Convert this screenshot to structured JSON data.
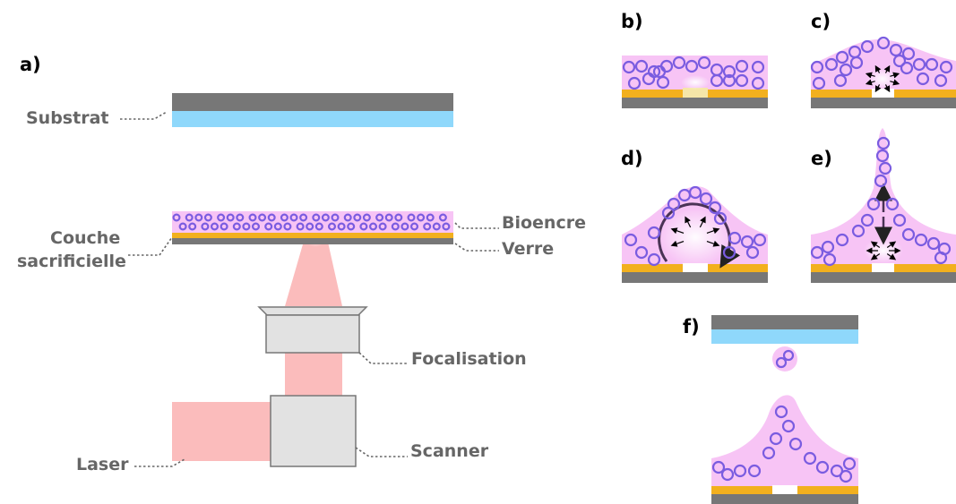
{
  "panels": {
    "a": "a)",
    "b": "b)",
    "c": "c)",
    "d": "d)",
    "e": "e)",
    "f": "f)"
  },
  "labels": {
    "substrat": "Substrat",
    "bioencre": "Bioencre",
    "couche_line1": "Couche",
    "couche_line2": "sacrificielle",
    "verre": "Verre",
    "focalisation": "Focalisation",
    "laser": "Laser",
    "scanner": "Scanner"
  },
  "colors": {
    "glass_dark": "#777777",
    "substrate_blue": "#8fd8fb",
    "bioink_pink": "#f7c4f5",
    "sacrificial_gold": "#f2b01e",
    "laser_beam": "#fbbcbc",
    "optics_gray": "#e2e2e2",
    "cell_outline": "#7a5ce0"
  }
}
